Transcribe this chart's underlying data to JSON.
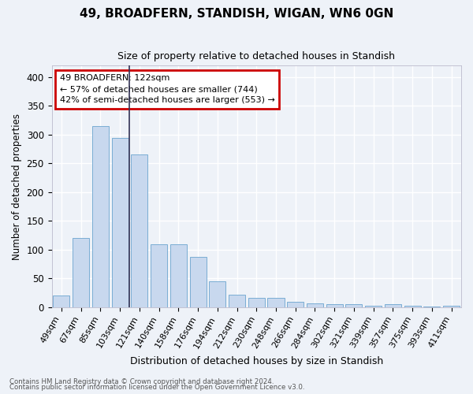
{
  "title": "49, BROADFERN, STANDISH, WIGAN, WN6 0GN",
  "subtitle": "Size of property relative to detached houses in Standish",
  "xlabel": "Distribution of detached houses by size in Standish",
  "ylabel": "Number of detached properties",
  "footnote1": "Contains HM Land Registry data © Crown copyright and database right 2024.",
  "footnote2": "Contains public sector information licensed under the Open Government Licence v3.0.",
  "categories": [
    "49sqm",
    "67sqm",
    "85sqm",
    "103sqm",
    "121sqm",
    "140sqm",
    "158sqm",
    "176sqm",
    "194sqm",
    "212sqm",
    "230sqm",
    "248sqm",
    "266sqm",
    "284sqm",
    "302sqm",
    "321sqm",
    "339sqm",
    "357sqm",
    "375sqm",
    "393sqm",
    "411sqm"
  ],
  "values": [
    20,
    120,
    315,
    295,
    265,
    110,
    110,
    88,
    45,
    22,
    16,
    16,
    9,
    6,
    5,
    5,
    2,
    5,
    3,
    1,
    3
  ],
  "bar_color": "#c8d8ee",
  "bar_edge_color": "#7aadd4",
  "annotation_title": "49 BROADFERN: 122sqm",
  "annotation_line1": "← 57% of detached houses are smaller (744)",
  "annotation_line2": "42% of semi-detached houses are larger (553) →",
  "annotation_box_facecolor": "#ffffff",
  "annotation_box_edgecolor": "#cc0000",
  "property_line_color": "#333355",
  "background_color": "#eef2f8",
  "grid_color": "#ffffff",
  "ylim": [
    0,
    420
  ],
  "yticks": [
    0,
    50,
    100,
    150,
    200,
    250,
    300,
    350,
    400
  ],
  "title_fontsize": 11,
  "subtitle_fontsize": 9,
  "property_line_index": 4
}
